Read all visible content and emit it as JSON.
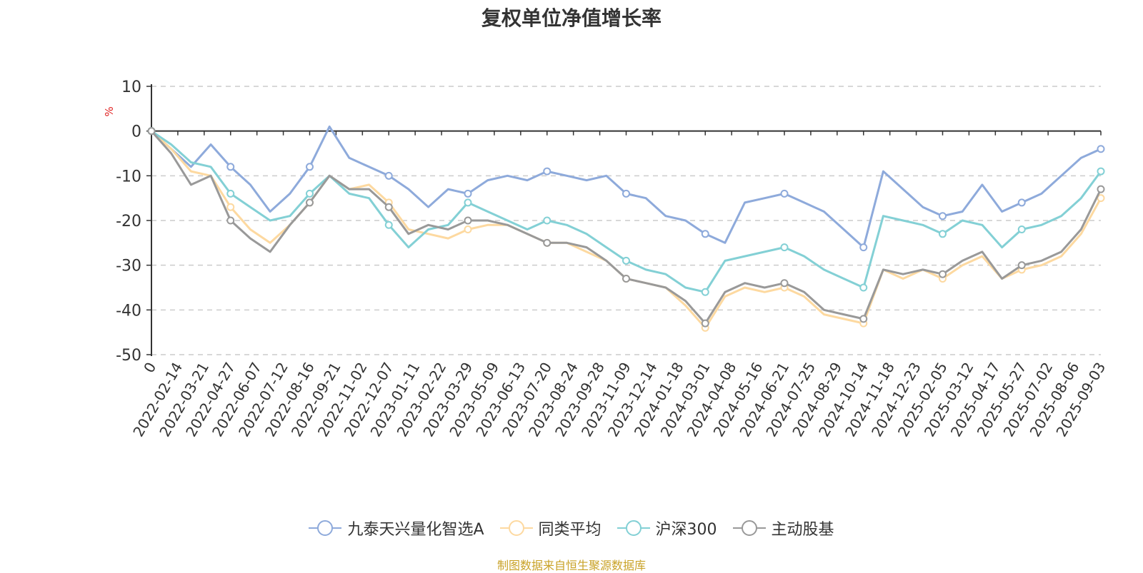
{
  "chart_data": {
    "type": "line",
    "title": "复权单位净值增长率",
    "ylabel": "%",
    "ylim": [
      -50,
      10
    ],
    "yticks": [
      10,
      0,
      -10,
      -20,
      -30,
      -40,
      -50
    ],
    "x_start_label": "0",
    "xticks": [
      "2022-02-14",
      "2022-03-21",
      "2022-04-27",
      "2022-06-07",
      "2022-07-12",
      "2022-08-16",
      "2022-09-21",
      "2022-11-02",
      "2022-12-07",
      "2023-01-11",
      "2023-02-22",
      "2023-03-29",
      "2023-05-09",
      "2023-06-13",
      "2023-07-20",
      "2023-08-24",
      "2023-09-28",
      "2023-11-09",
      "2023-12-14",
      "2024-01-18",
      "2024-03-01",
      "2024-04-08",
      "2024-05-16",
      "2024-06-21",
      "2024-07-25",
      "2024-08-29",
      "2024-10-14",
      "2024-11-18",
      "2024-12-23",
      "2025-02-05",
      "2025-03-12",
      "2025-04-17",
      "2025-05-27",
      "2025-07-02",
      "2025-08-06",
      "2025-09-03"
    ],
    "legend_position": "bottom",
    "grid": "horizontal-dashed",
    "series": [
      {
        "name": "九泰天兴量化智选A",
        "color": "#8eaadb",
        "values": [
          0,
          -4,
          -8,
          -3,
          -8,
          -12,
          -18,
          -14,
          -8,
          1,
          -6,
          -8,
          -10,
          -13,
          -17,
          -13,
          -14,
          -11,
          -10,
          -11,
          -9,
          -10,
          -11,
          -10,
          -14,
          -15,
          -19,
          -20,
          -23,
          -25,
          -16,
          -15,
          -14,
          -16,
          -18,
          -22,
          -26,
          -9,
          -13,
          -17,
          -19,
          -18,
          -12,
          -18,
          -16,
          -14,
          -10,
          -6,
          -4
        ]
      },
      {
        "name": "同类平均",
        "color": "#fdd9a0",
        "values": [
          0,
          -4,
          -9,
          -10,
          -17,
          -22,
          -25,
          -21,
          -16,
          -10,
          -13,
          -12,
          -16,
          -22,
          -23,
          -24,
          -22,
          -21,
          -21,
          -23,
          -25,
          -25,
          -27,
          -29,
          -33,
          -34,
          -35,
          -39,
          -44,
          -37,
          -35,
          -36,
          -35,
          -37,
          -41,
          -42,
          -43,
          -31,
          -33,
          -31,
          -33,
          -30,
          -28,
          -33,
          -31,
          -30,
          -28,
          -23,
          -15
        ]
      },
      {
        "name": "沪深300",
        "color": "#83d0d5",
        "values": [
          0,
          -3,
          -7,
          -8,
          -14,
          -17,
          -20,
          -19,
          -14,
          -10,
          -14,
          -15,
          -21,
          -26,
          -22,
          -21,
          -16,
          -18,
          -20,
          -22,
          -20,
          -21,
          -23,
          -26,
          -29,
          -31,
          -32,
          -35,
          -36,
          -29,
          -28,
          -27,
          -26,
          -28,
          -31,
          -33,
          -35,
          -19,
          -20,
          -21,
          -23,
          -20,
          -21,
          -26,
          -22,
          -21,
          -19,
          -15,
          -9
        ]
      },
      {
        "name": "主动股基",
        "color": "#999999",
        "values": [
          0,
          -5,
          -12,
          -10,
          -20,
          -24,
          -27,
          -21,
          -16,
          -10,
          -13,
          -13,
          -17,
          -23,
          -21,
          -22,
          -20,
          -20,
          -21,
          -23,
          -25,
          -25,
          -26,
          -29,
          -33,
          -34,
          -35,
          -38,
          -43,
          -36,
          -34,
          -35,
          -34,
          -36,
          -40,
          -41,
          -42,
          -31,
          -32,
          -31,
          -32,
          -29,
          -27,
          -33,
          -30,
          -29,
          -27,
          -22,
          -13
        ]
      }
    ]
  },
  "legend": {
    "items": [
      {
        "label": "九泰天兴量化智选A",
        "color": "#8eaadb"
      },
      {
        "label": "同类平均",
        "color": "#fdd9a0"
      },
      {
        "label": "沪深300",
        "color": "#83d0d5"
      },
      {
        "label": "主动股基",
        "color": "#999999"
      }
    ]
  },
  "source": {
    "text": "制图数据来自恒生聚源数据库",
    "color": "#c9a227"
  },
  "ylabel_color": "#e02020"
}
